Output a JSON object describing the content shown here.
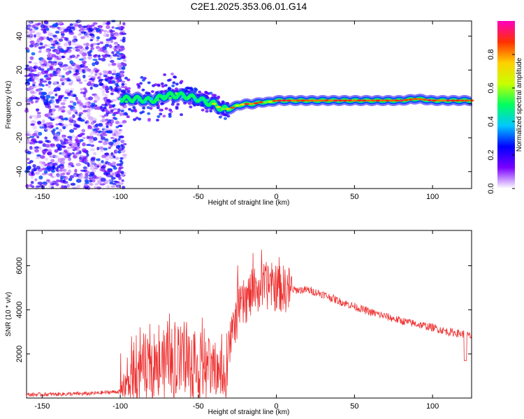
{
  "title": "C2E1.2025.353.06.01.G14",
  "chart_data": [
    {
      "type": "heatmap",
      "xlabel": "Height of straight line (km)",
      "ylabel": "Frequency (Hz)",
      "xlim": [
        -160,
        125
      ],
      "ylim": [
        -50,
        49
      ],
      "xticks": [
        -150,
        -100,
        -50,
        0,
        50,
        100
      ],
      "yticks": [
        -40,
        -20,
        0,
        20,
        40
      ],
      "colorbar": {
        "label": "Normalized spectral amplitude",
        "range": [
          0,
          1
        ],
        "ticks": [
          "0.0",
          "0.2",
          "0.4",
          "0.6",
          "0.8"
        ],
        "tick_values": [
          0,
          0.2,
          0.4,
          0.6,
          0.8
        ],
        "colors": [
          "#ffffff",
          "#7a00ff",
          "#0000ff",
          "#00c8ff",
          "#00ff60",
          "#c8ff00",
          "#ffd000",
          "#ff3000",
          "#ff00c0"
        ]
      },
      "ridge": {
        "x": [
          -100,
          -90,
          -80,
          -70,
          -60,
          -50,
          -45,
          -40,
          -35,
          -30,
          -25,
          -20,
          -15,
          -10,
          -5,
          0,
          5,
          10,
          20,
          40,
          60,
          80,
          90,
          100,
          110,
          125
        ],
        "frequency": [
          3,
          3,
          2,
          5,
          5,
          3,
          1,
          0,
          -3,
          -3,
          -1,
          0,
          0,
          1,
          1,
          2,
          2,
          2,
          2,
          2,
          2,
          2,
          3,
          2,
          2,
          2
        ]
      }
    },
    {
      "type": "line",
      "xlabel": "Height of straight line (km)",
      "ylabel": "SNR (10 * v/v)",
      "xlim": [
        -160,
        125
      ],
      "ylim": [
        0,
        7600
      ],
      "xticks": [
        -150,
        -100,
        -50,
        0,
        50,
        100
      ],
      "yticks": [
        2000,
        4000,
        6000
      ],
      "color": "#ee3030",
      "trend": {
        "x": [
          -160,
          -120,
          -100,
          -95,
          -90,
          -80,
          -70,
          -60,
          -50,
          -40,
          -35,
          -30,
          -25,
          -20,
          -15,
          -10,
          -5,
          0,
          10,
          20,
          30,
          40,
          60,
          80,
          100,
          110,
          120,
          125
        ],
        "snr": [
          150,
          200,
          300,
          600,
          1000,
          1400,
          1500,
          1600,
          1300,
          1300,
          800,
          2400,
          3800,
          4400,
          4800,
          5000,
          5100,
          5000,
          4900,
          4900,
          4700,
          4400,
          3900,
          3500,
          3200,
          3000,
          2900,
          2800
        ]
      }
    }
  ]
}
